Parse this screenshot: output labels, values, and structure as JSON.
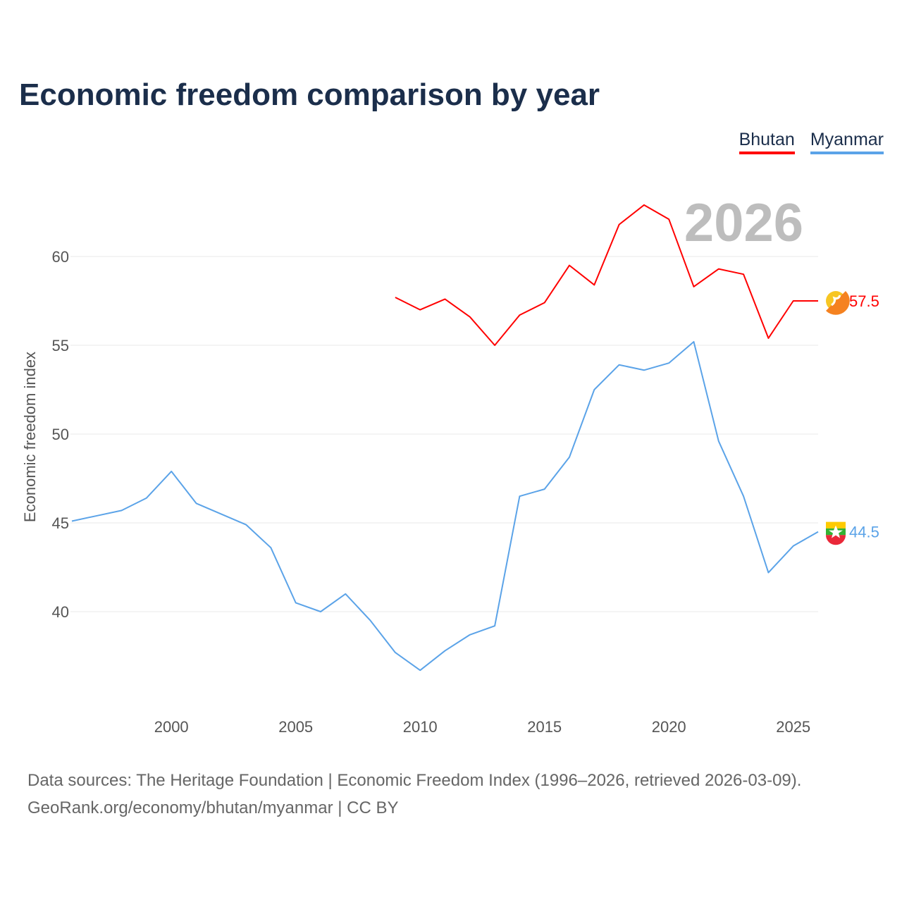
{
  "title": "Economic freedom comparison by year",
  "legend": [
    {
      "label": "Bhutan",
      "color": "#ff0000"
    },
    {
      "label": "Myanmar",
      "color": "#5ba3e8"
    }
  ],
  "footer": {
    "line1": "Data sources: The Heritage Foundation | Economic Freedom Index (1996–2026, retrieved 2026-03-09).",
    "line2": "GeoRank.org/economy/bhutan/myanmar | CC BY"
  },
  "chart_data": {
    "type": "line",
    "title": "Economic freedom comparison by year",
    "ylabel": "Economic freedom index",
    "xlabel": "",
    "watermark_year": "2026",
    "xlim": [
      1996,
      2026
    ],
    "ylim": [
      34.4,
      64
    ],
    "xticks": [
      2000,
      2005,
      2010,
      2015,
      2020,
      2025
    ],
    "yticks": [
      40,
      45,
      50,
      55,
      60
    ],
    "grid": true,
    "legend_position": "top-right",
    "series": [
      {
        "name": "Bhutan",
        "color": "#ff0000",
        "end_label": "57.5",
        "x": [
          2009,
          2010,
          2011,
          2012,
          2013,
          2014,
          2015,
          2016,
          2017,
          2018,
          2019,
          2020,
          2021,
          2022,
          2023,
          2024,
          2025,
          2026
        ],
        "values": [
          57.7,
          57.0,
          57.6,
          56.6,
          55.0,
          56.7,
          57.4,
          59.5,
          58.4,
          61.8,
          62.9,
          62.1,
          58.3,
          59.3,
          59.0,
          55.4,
          57.5,
          57.5
        ]
      },
      {
        "name": "Myanmar",
        "color": "#5ba3e8",
        "end_label": "44.5",
        "x": [
          1996,
          1997,
          1998,
          1999,
          2000,
          2001,
          2002,
          2003,
          2004,
          2005,
          2006,
          2007,
          2008,
          2009,
          2010,
          2011,
          2012,
          2013,
          2014,
          2015,
          2016,
          2017,
          2018,
          2019,
          2020,
          2021,
          2022,
          2023,
          2024,
          2025,
          2026
        ],
        "values": [
          45.1,
          45.4,
          45.7,
          46.4,
          47.9,
          46.1,
          45.5,
          44.9,
          43.6,
          40.5,
          40.0,
          41.0,
          39.5,
          37.7,
          36.7,
          37.8,
          38.7,
          39.2,
          46.5,
          46.9,
          48.7,
          52.5,
          53.9,
          53.6,
          54.0,
          55.2,
          49.6,
          46.5,
          42.2,
          43.7,
          44.5
        ]
      }
    ]
  }
}
